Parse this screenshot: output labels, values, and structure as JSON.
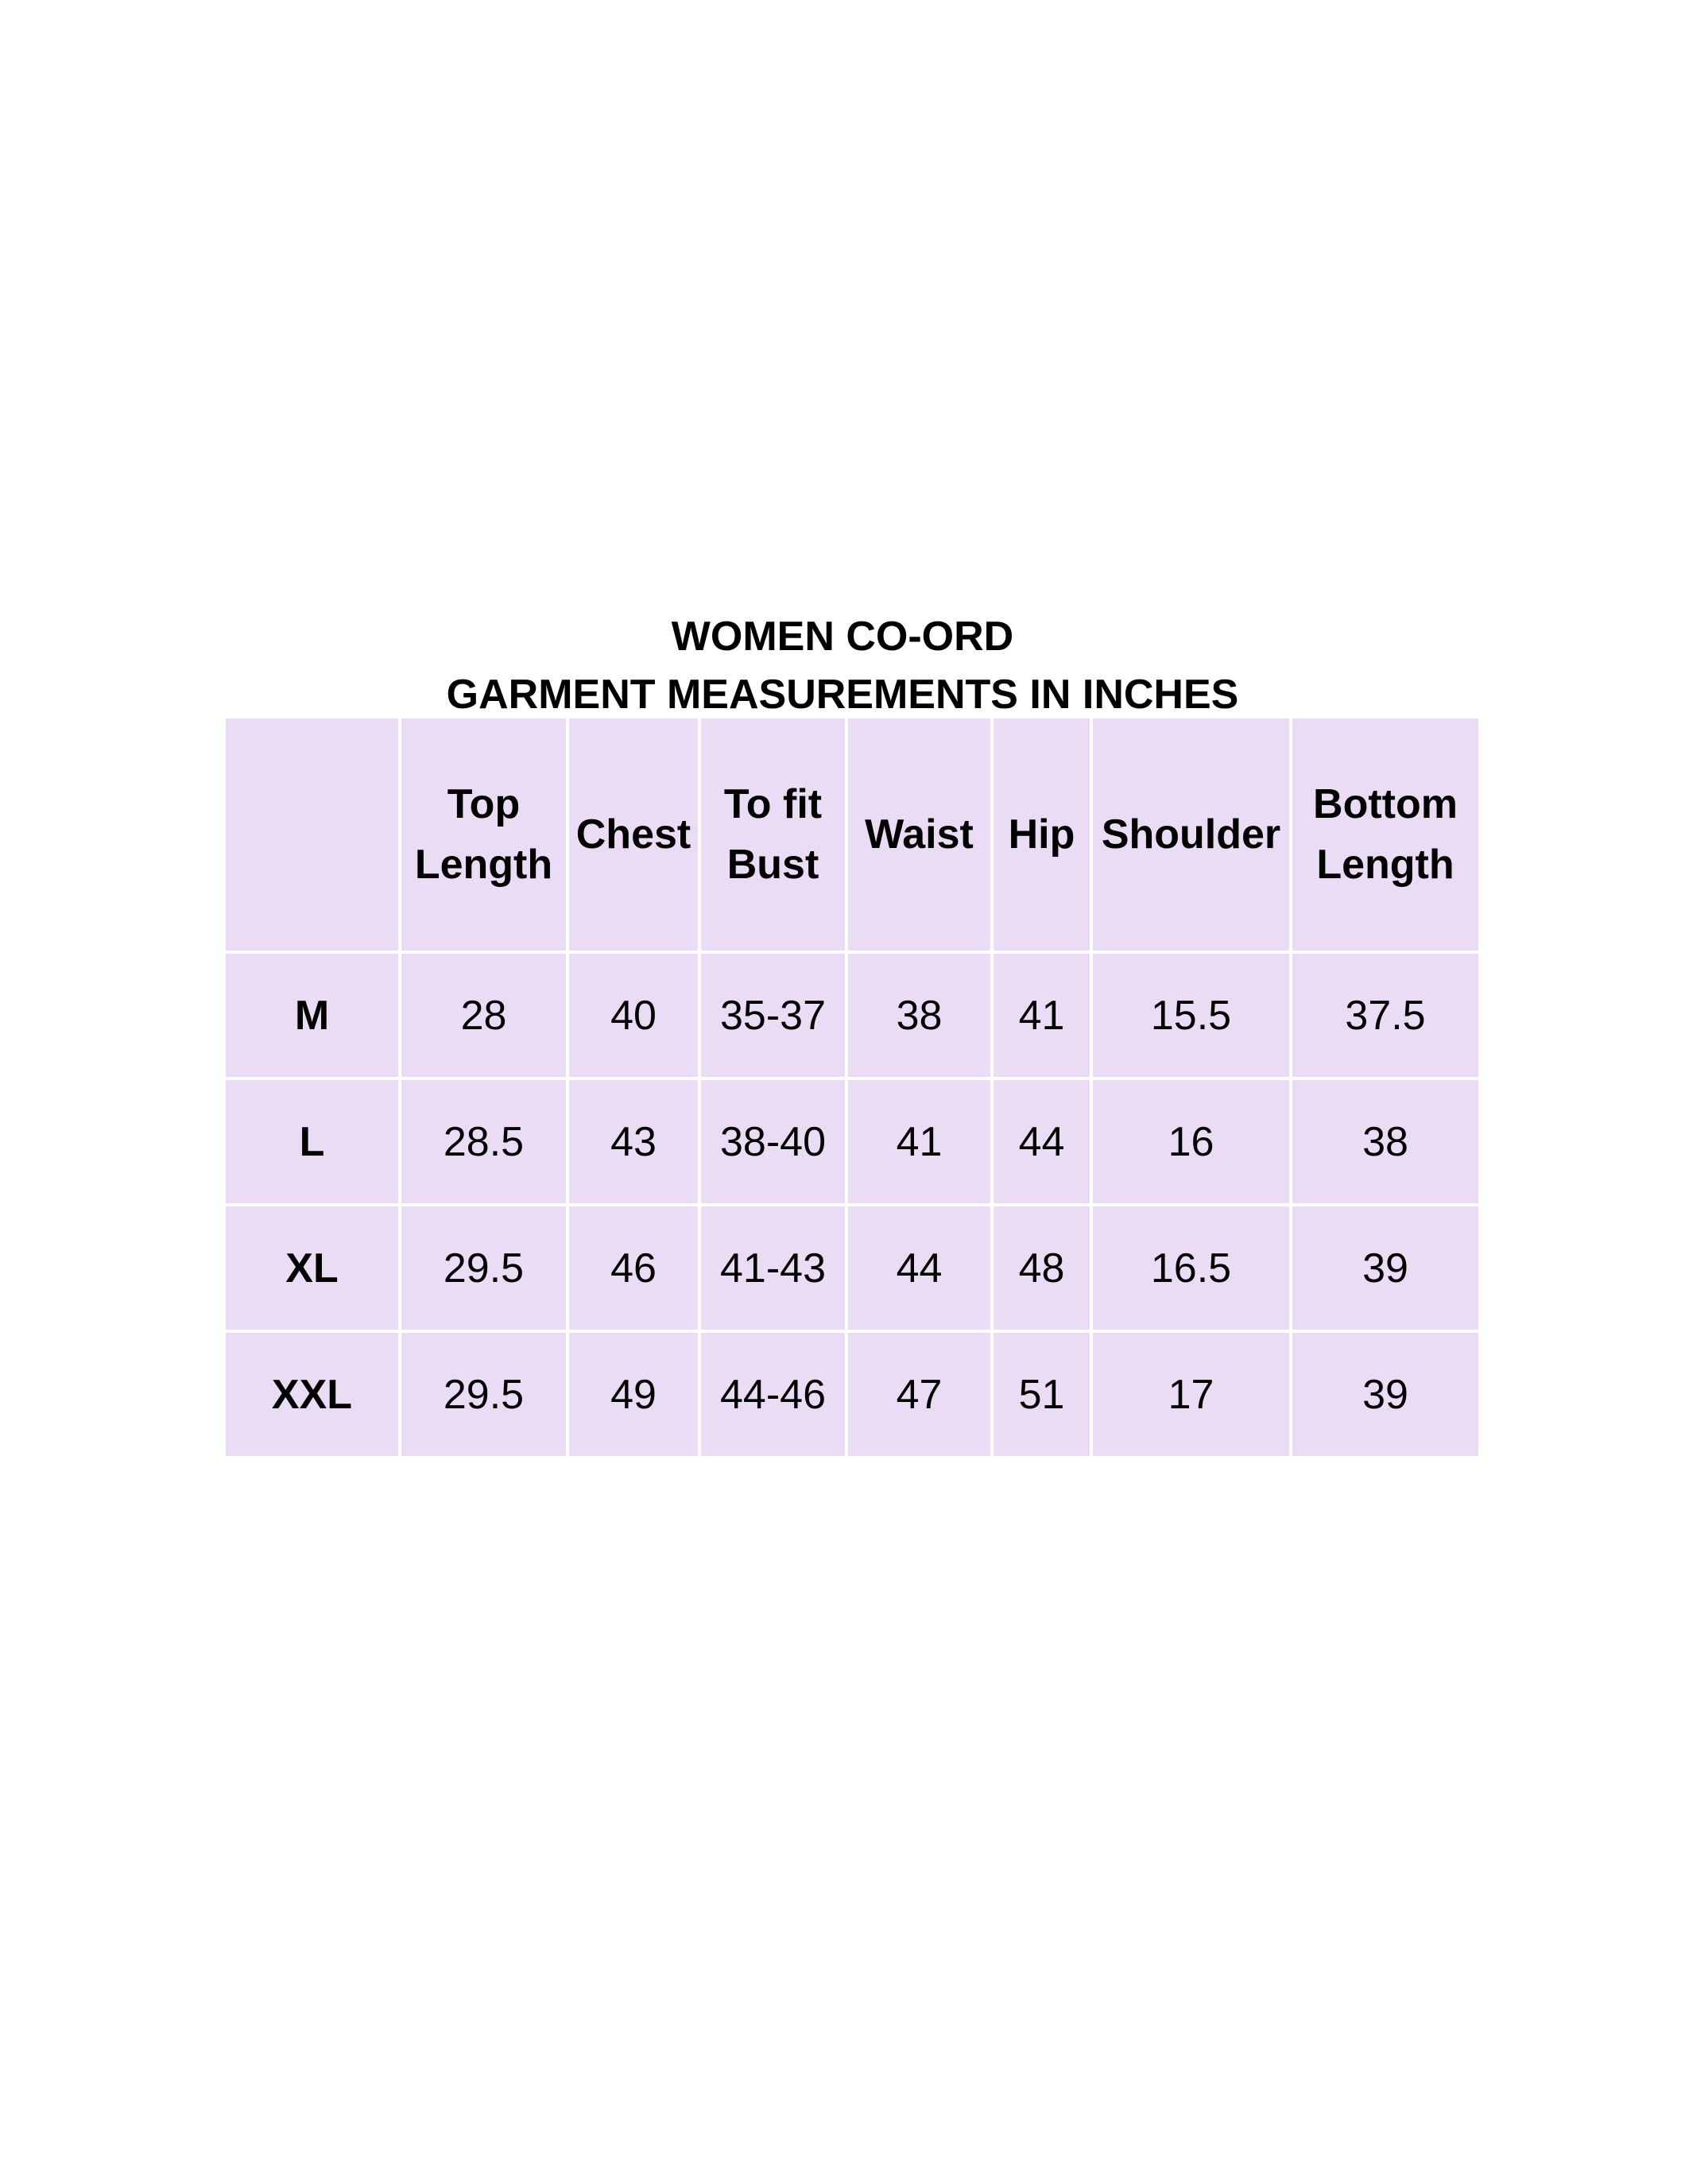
{
  "title": {
    "line1": "WOMEN CO-ORD",
    "line2": "GARMENT MEASUREMENTS IN INCHES"
  },
  "cell_color": "#ebdcf5",
  "table": {
    "headers": [
      {
        "line1": "",
        "line2": ""
      },
      {
        "line1": "Top",
        "line2": "Length"
      },
      {
        "line1": "Chest",
        "line2": ""
      },
      {
        "line1": "To fit",
        "line2": "Bust"
      },
      {
        "line1": "Waist",
        "line2": ""
      },
      {
        "line1": "Hip",
        "line2": ""
      },
      {
        "line1": "Shoulder",
        "line2": ""
      },
      {
        "line1": "Bottom",
        "line2": "Length"
      }
    ],
    "rows": [
      [
        "M",
        "28",
        "40",
        "35-37",
        "38",
        "41",
        "15.5",
        "37.5"
      ],
      [
        "L",
        "28.5",
        "43",
        "38-40",
        "41",
        "44",
        "16",
        "38"
      ],
      [
        "XL",
        "29.5",
        "46",
        "41-43",
        "44",
        "48",
        "16.5",
        "39"
      ],
      [
        "XXL",
        "29.5",
        "49",
        "44-46",
        "47",
        "51",
        "17",
        "39"
      ]
    ]
  }
}
